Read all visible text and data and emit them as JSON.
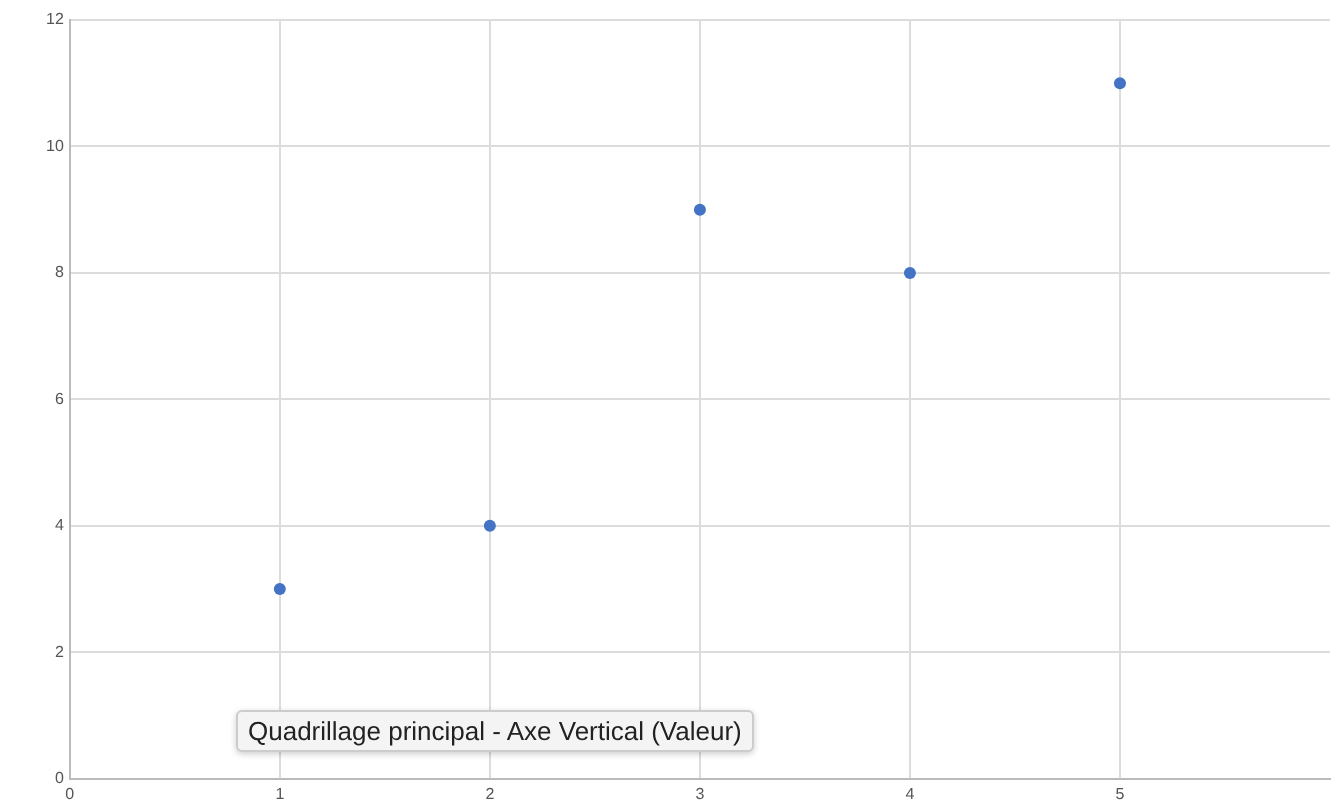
{
  "chart_data": {
    "type": "scatter",
    "x": [
      1,
      2,
      3,
      4,
      5
    ],
    "values": [
      3,
      4,
      9,
      8,
      11
    ],
    "color": "#4472c4",
    "xlim": [
      0,
      6
    ],
    "xticks": [
      0,
      1,
      2,
      3,
      4,
      5
    ],
    "ylim": [
      0,
      12
    ],
    "yticks": [
      0,
      2,
      4,
      6,
      8,
      10,
      12
    ],
    "grid": true,
    "legend": false,
    "marker": "circle",
    "annotations": [
      "Quadrillage principal - Axe Vertical (Valeur)"
    ]
  }
}
